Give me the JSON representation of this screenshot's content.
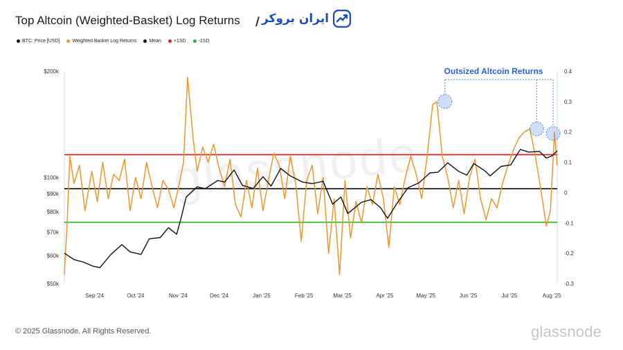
{
  "title": "Top Altcoin (Weighted-Basket) Log Returns",
  "logo": {
    "text": "ایران بروکر",
    "icon": "chart-trend-icon",
    "color": "#1f4fb5"
  },
  "legend": [
    {
      "label": "BTC: Price [USD]",
      "color": "#111111"
    },
    {
      "label": "Weighted Basket Log Returns",
      "color": "#f0952a"
    },
    {
      "label": "Mean",
      "color": "#111111"
    },
    {
      "label": "+1SD",
      "color": "#e02020"
    },
    {
      "label": "-1SD",
      "color": "#2bb52b"
    }
  ],
  "footer": {
    "copyright": "© 2025 Glassnode. All Rights Reserved.",
    "brand": "glassnode"
  },
  "watermark": "glassnode",
  "chart_data": {
    "type": "line",
    "title": "Top Altcoin (Weighted-Basket) Log Returns",
    "x_ticks": [
      "Sep '24",
      "Oct '24",
      "Nov '24",
      "Dec '24",
      "Jan '25",
      "Feb '25",
      "Mar '25",
      "Apr '25",
      "May '25",
      "Jun '25",
      "Jul '25",
      "Aug '25"
    ],
    "x_range": [
      "2024-08-15",
      "2025-08-10"
    ],
    "left_axis": {
      "scale": "log",
      "range": [
        50000,
        200000
      ],
      "ticks": [
        "$50k",
        "$60k",
        "$70k",
        "$80k",
        "$90k",
        "$100k",
        "$200k"
      ],
      "tick_values": [
        50000,
        60000,
        70000,
        80000,
        90000,
        100000,
        200000
      ]
    },
    "right_axis": {
      "scale": "linear",
      "range": [
        -0.3,
        0.4
      ],
      "ticks": [
        "-0.3",
        "-0.2",
        "-0.1",
        "0",
        "0.1",
        "0.2",
        "0.3",
        "0.4"
      ],
      "tick_values": [
        -0.3,
        -0.2,
        -0.1,
        0,
        0.1,
        0.2,
        0.3,
        0.4
      ]
    },
    "reference_lines": [
      {
        "name": "+1SD",
        "value": 0.125,
        "color": "#e02020"
      },
      {
        "name": "Mean",
        "value": 0.013,
        "color": "#111111"
      },
      {
        "name": "-1SD",
        "value": -0.098,
        "color": "#2bb52b"
      }
    ],
    "annotation": {
      "text": "Outsized Altcoin Returns",
      "points": [
        {
          "date": "2025-05-20",
          "value": 0.3
        },
        {
          "date": "2025-07-26",
          "value": 0.21
        },
        {
          "date": "2025-08-07",
          "value": 0.195
        }
      ]
    },
    "series": [
      {
        "name": "BTC: Price [USD]",
        "axis": "left",
        "color": "#111111",
        "points": [
          [
            "2024-08-15",
            61000
          ],
          [
            "2024-08-22",
            58500
          ],
          [
            "2024-08-29",
            57500
          ],
          [
            "2024-09-05",
            56000
          ],
          [
            "2024-09-10",
            55500
          ],
          [
            "2024-09-18",
            60500
          ],
          [
            "2024-09-26",
            64500
          ],
          [
            "2024-10-02",
            61500
          ],
          [
            "2024-10-10",
            60500
          ],
          [
            "2024-10-16",
            67000
          ],
          [
            "2024-10-24",
            67500
          ],
          [
            "2024-10-30",
            72000
          ],
          [
            "2024-11-05",
            69000
          ],
          [
            "2024-11-08",
            76000
          ],
          [
            "2024-11-12",
            88000
          ],
          [
            "2024-11-20",
            94000
          ],
          [
            "2024-11-26",
            93000
          ],
          [
            "2024-12-05",
            98000
          ],
          [
            "2024-12-10",
            97000
          ],
          [
            "2024-12-17",
            105000
          ],
          [
            "2024-12-23",
            95000
          ],
          [
            "2024-12-31",
            93000
          ],
          [
            "2025-01-07",
            100500
          ],
          [
            "2025-01-13",
            94500
          ],
          [
            "2025-01-20",
            106000
          ],
          [
            "2025-01-27",
            101000
          ],
          [
            "2025-02-05",
            97000
          ],
          [
            "2025-02-12",
            96000
          ],
          [
            "2025-02-20",
            97500
          ],
          [
            "2025-02-27",
            84000
          ],
          [
            "2025-03-05",
            88000
          ],
          [
            "2025-03-10",
            79000
          ],
          [
            "2025-03-20",
            85000
          ],
          [
            "2025-03-27",
            86500
          ],
          [
            "2025-04-03",
            82000
          ],
          [
            "2025-04-08",
            76500
          ],
          [
            "2025-04-15",
            84500
          ],
          [
            "2025-04-23",
            93500
          ],
          [
            "2025-05-01",
            96500
          ],
          [
            "2025-05-09",
            103000
          ],
          [
            "2025-05-15",
            103500
          ],
          [
            "2025-05-22",
            110000
          ],
          [
            "2025-05-30",
            104000
          ],
          [
            "2025-06-05",
            101500
          ],
          [
            "2025-06-10",
            109500
          ],
          [
            "2025-06-18",
            104500
          ],
          [
            "2025-06-22",
            101000
          ],
          [
            "2025-06-30",
            107500
          ],
          [
            "2025-07-07",
            108500
          ],
          [
            "2025-07-14",
            120000
          ],
          [
            "2025-07-20",
            118000
          ],
          [
            "2025-07-28",
            118500
          ],
          [
            "2025-08-02",
            113500
          ],
          [
            "2025-08-06",
            115000
          ],
          [
            "2025-08-10",
            119000
          ]
        ]
      },
      {
        "name": "Weighted Basket Log Returns",
        "axis": "right",
        "color": "#f0952a",
        "points": [
          [
            "2024-08-15",
            -0.27
          ],
          [
            "2024-08-17",
            -0.1
          ],
          [
            "2024-08-19",
            0.12
          ],
          [
            "2024-08-22",
            0.03
          ],
          [
            "2024-08-26",
            0.09
          ],
          [
            "2024-08-30",
            -0.06
          ],
          [
            "2024-09-04",
            0.07
          ],
          [
            "2024-09-08",
            -0.03
          ],
          [
            "2024-09-12",
            0.1
          ],
          [
            "2024-09-16",
            -0.02
          ],
          [
            "2024-09-20",
            0.06
          ],
          [
            "2024-09-24",
            0.04
          ],
          [
            "2024-09-28",
            0.11
          ],
          [
            "2024-10-02",
            -0.06
          ],
          [
            "2024-10-06",
            0.05
          ],
          [
            "2024-10-10",
            -0.02
          ],
          [
            "2024-10-14",
            0.1
          ],
          [
            "2024-10-18",
            0.02
          ],
          [
            "2024-10-22",
            -0.05
          ],
          [
            "2024-10-26",
            0.04
          ],
          [
            "2024-10-30",
            0.01
          ],
          [
            "2024-11-03",
            -0.05
          ],
          [
            "2024-11-07",
            0.03
          ],
          [
            "2024-11-10",
            0.1
          ],
          [
            "2024-11-13",
            0.38
          ],
          [
            "2024-11-17",
            0.18
          ],
          [
            "2024-11-20",
            0.07
          ],
          [
            "2024-11-24",
            0.15
          ],
          [
            "2024-11-28",
            0.1
          ],
          [
            "2024-12-02",
            0.16
          ],
          [
            "2024-12-06",
            0.08
          ],
          [
            "2024-12-10",
            0.02
          ],
          [
            "2024-12-14",
            0.11
          ],
          [
            "2024-12-18",
            -0.04
          ],
          [
            "2024-12-22",
            -0.08
          ],
          [
            "2024-12-26",
            0.04
          ],
          [
            "2024-12-30",
            -0.05
          ],
          [
            "2025-01-03",
            0.08
          ],
          [
            "2025-01-07",
            -0.06
          ],
          [
            "2025-01-11",
            0.04
          ],
          [
            "2025-01-15",
            0.13
          ],
          [
            "2025-01-19",
            0.09
          ],
          [
            "2025-01-23",
            -0.02
          ],
          [
            "2025-01-27",
            0.12
          ],
          [
            "2025-01-31",
            0.03
          ],
          [
            "2025-02-04",
            -0.16
          ],
          [
            "2025-02-08",
            0.04
          ],
          [
            "2025-02-12",
            0.09
          ],
          [
            "2025-02-16",
            -0.07
          ],
          [
            "2025-02-20",
            0.05
          ],
          [
            "2025-02-24",
            -0.2
          ],
          [
            "2025-02-28",
            -0.02
          ],
          [
            "2025-03-04",
            -0.27
          ],
          [
            "2025-03-08",
            0.04
          ],
          [
            "2025-03-12",
            -0.15
          ],
          [
            "2025-03-16",
            -0.03
          ],
          [
            "2025-03-20",
            -0.1
          ],
          [
            "2025-03-24",
            0.02
          ],
          [
            "2025-03-28",
            -0.04
          ],
          [
            "2025-04-01",
            0.06
          ],
          [
            "2025-04-05",
            -0.02
          ],
          [
            "2025-04-09",
            -0.18
          ],
          [
            "2025-04-13",
            0.02
          ],
          [
            "2025-04-17",
            -0.04
          ],
          [
            "2025-04-21",
            0.05
          ],
          [
            "2025-04-25",
            0.12
          ],
          [
            "2025-04-29",
            0.06
          ],
          [
            "2025-05-03",
            -0.02
          ],
          [
            "2025-05-07",
            0.12
          ],
          [
            "2025-05-11",
            0.29
          ],
          [
            "2025-05-14",
            0.3
          ],
          [
            "2025-05-18",
            0.12
          ],
          [
            "2025-05-22",
            0.05
          ],
          [
            "2025-05-26",
            -0.05
          ],
          [
            "2025-05-30",
            0.04
          ],
          [
            "2025-06-03",
            -0.07
          ],
          [
            "2025-06-07",
            0.05
          ],
          [
            "2025-06-11",
            0.11
          ],
          [
            "2025-06-15",
            -0.02
          ],
          [
            "2025-06-19",
            -0.09
          ],
          [
            "2025-06-23",
            -0.02
          ],
          [
            "2025-06-27",
            -0.05
          ],
          [
            "2025-07-01",
            0.03
          ],
          [
            "2025-07-05",
            0.09
          ],
          [
            "2025-07-09",
            0.14
          ],
          [
            "2025-07-13",
            0.18
          ],
          [
            "2025-07-17",
            0.2
          ],
          [
            "2025-07-21",
            0.21
          ],
          [
            "2025-07-25",
            0.12
          ],
          [
            "2025-07-29",
            0.01
          ],
          [
            "2025-08-02",
            -0.11
          ],
          [
            "2025-08-05",
            -0.06
          ],
          [
            "2025-08-08",
            0.2
          ],
          [
            "2025-08-10",
            0.09
          ]
        ]
      }
    ]
  }
}
